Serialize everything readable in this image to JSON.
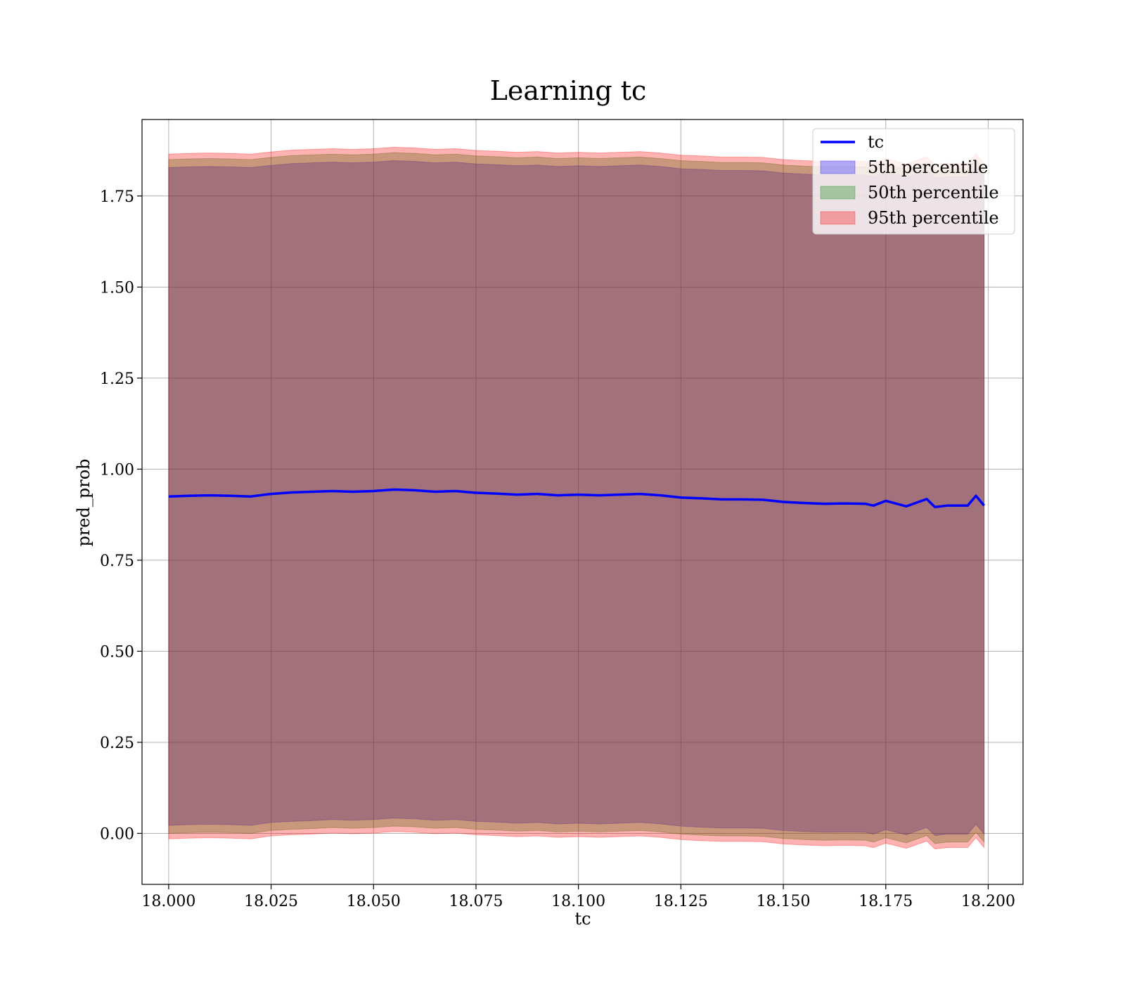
{
  "chart_data": {
    "type": "area",
    "title": "Learning tc",
    "xlabel": "tc",
    "ylabel": "pred_prob",
    "xlim": [
      17.9935,
      18.2085
    ],
    "ylim": [
      -0.14,
      1.96
    ],
    "xticks": [
      18.0,
      18.025,
      18.05,
      18.075,
      18.1,
      18.125,
      18.15,
      18.175,
      18.2
    ],
    "xtick_labels": [
      "18.000",
      "18.025",
      "18.050",
      "18.075",
      "18.100",
      "18.125",
      "18.150",
      "18.175",
      "18.200"
    ],
    "yticks": [
      0.0,
      0.25,
      0.5,
      0.75,
      1.0,
      1.25,
      1.5,
      1.75
    ],
    "ytick_labels": [
      "0.00",
      "0.25",
      "0.50",
      "0.75",
      "1.00",
      "1.25",
      "1.50",
      "1.75"
    ],
    "grid": true,
    "legend_position": "top-right",
    "x": [
      18.0,
      18.005,
      18.01,
      18.015,
      18.02,
      18.025,
      18.03,
      18.035,
      18.04,
      18.045,
      18.05,
      18.055,
      18.06,
      18.065,
      18.07,
      18.075,
      18.08,
      18.085,
      18.09,
      18.095,
      18.1,
      18.105,
      18.11,
      18.115,
      18.12,
      18.125,
      18.13,
      18.135,
      18.14,
      18.145,
      18.15,
      18.155,
      18.16,
      18.165,
      18.17,
      18.172,
      18.175,
      18.18,
      18.185,
      18.187,
      18.19,
      18.195,
      18.197,
      18.199
    ],
    "series": [
      {
        "name": "tc",
        "kind": "line",
        "color": "#0000ff",
        "values": [
          0.925,
          0.927,
          0.928,
          0.927,
          0.925,
          0.932,
          0.936,
          0.938,
          0.94,
          0.938,
          0.94,
          0.944,
          0.942,
          0.938,
          0.94,
          0.935,
          0.933,
          0.93,
          0.932,
          0.928,
          0.93,
          0.928,
          0.93,
          0.932,
          0.928,
          0.922,
          0.92,
          0.917,
          0.917,
          0.916,
          0.91,
          0.907,
          0.905,
          0.906,
          0.905,
          0.9,
          0.913,
          0.898,
          0.918,
          0.896,
          0.9,
          0.9,
          0.927,
          0.9
        ]
      },
      {
        "name": "5th percentile",
        "kind": "band",
        "color": "#0000ff",
        "lower": [
          0.022,
          0.024,
          0.025,
          0.024,
          0.022,
          0.03,
          0.033,
          0.035,
          0.038,
          0.036,
          0.038,
          0.042,
          0.04,
          0.036,
          0.038,
          0.033,
          0.031,
          0.028,
          0.03,
          0.026,
          0.028,
          0.026,
          0.028,
          0.03,
          0.026,
          0.02,
          0.017,
          0.015,
          0.015,
          0.014,
          0.008,
          0.005,
          0.003,
          0.004,
          0.003,
          -0.002,
          0.01,
          -0.004,
          0.016,
          -0.006,
          -0.002,
          -0.002,
          0.025,
          -0.002
        ],
        "upper": [
          1.828,
          1.83,
          1.831,
          1.83,
          1.828,
          1.834,
          1.839,
          1.841,
          1.843,
          1.841,
          1.843,
          1.847,
          1.845,
          1.841,
          1.843,
          1.838,
          1.836,
          1.833,
          1.835,
          1.831,
          1.833,
          1.831,
          1.833,
          1.835,
          1.831,
          1.825,
          1.823,
          1.82,
          1.82,
          1.819,
          1.813,
          1.81,
          1.808,
          1.809,
          1.808,
          1.803,
          1.816,
          1.801,
          1.82,
          1.799,
          1.803,
          1.803,
          1.829,
          1.803
        ]
      },
      {
        "name": "50th percentile",
        "kind": "band",
        "color": "#008000",
        "lower": [
          0.0,
          0.002,
          0.003,
          0.002,
          0.0,
          0.008,
          0.011,
          0.013,
          0.016,
          0.014,
          0.016,
          0.02,
          0.018,
          0.014,
          0.016,
          0.011,
          0.009,
          0.006,
          0.008,
          0.004,
          0.006,
          0.004,
          0.006,
          0.008,
          0.004,
          -0.002,
          -0.005,
          -0.007,
          -0.007,
          -0.008,
          -0.014,
          -0.017,
          -0.019,
          -0.018,
          -0.019,
          -0.024,
          -0.012,
          -0.026,
          -0.006,
          -0.028,
          -0.024,
          -0.024,
          0.003,
          -0.024
        ],
        "upper": [
          1.85,
          1.852,
          1.853,
          1.852,
          1.85,
          1.856,
          1.861,
          1.863,
          1.865,
          1.863,
          1.865,
          1.869,
          1.867,
          1.863,
          1.865,
          1.86,
          1.858,
          1.855,
          1.857,
          1.853,
          1.855,
          1.853,
          1.855,
          1.857,
          1.853,
          1.847,
          1.845,
          1.842,
          1.842,
          1.841,
          1.835,
          1.832,
          1.83,
          1.831,
          1.83,
          1.825,
          1.838,
          1.823,
          1.842,
          1.821,
          1.825,
          1.825,
          1.851,
          1.825
        ]
      },
      {
        "name": "95th percentile",
        "kind": "band",
        "color": "#ff0000",
        "lower": [
          -0.015,
          -0.013,
          -0.012,
          -0.013,
          -0.015,
          -0.007,
          -0.004,
          -0.002,
          0.001,
          -0.001,
          0.001,
          0.005,
          0.003,
          -0.001,
          0.001,
          -0.004,
          -0.006,
          -0.009,
          -0.007,
          -0.011,
          -0.009,
          -0.011,
          -0.009,
          -0.007,
          -0.011,
          -0.017,
          -0.02,
          -0.022,
          -0.022,
          -0.023,
          -0.029,
          -0.032,
          -0.034,
          -0.033,
          -0.034,
          -0.039,
          -0.027,
          -0.041,
          -0.021,
          -0.043,
          -0.039,
          -0.039,
          -0.012,
          -0.039
        ],
        "upper": [
          1.865,
          1.867,
          1.868,
          1.867,
          1.865,
          1.871,
          1.876,
          1.878,
          1.88,
          1.878,
          1.88,
          1.884,
          1.882,
          1.878,
          1.88,
          1.875,
          1.873,
          1.87,
          1.872,
          1.868,
          1.87,
          1.868,
          1.87,
          1.872,
          1.868,
          1.862,
          1.86,
          1.857,
          1.857,
          1.856,
          1.85,
          1.847,
          1.845,
          1.846,
          1.845,
          1.84,
          1.853,
          1.838,
          1.857,
          1.836,
          1.84,
          1.84,
          1.866,
          1.84
        ]
      }
    ]
  }
}
